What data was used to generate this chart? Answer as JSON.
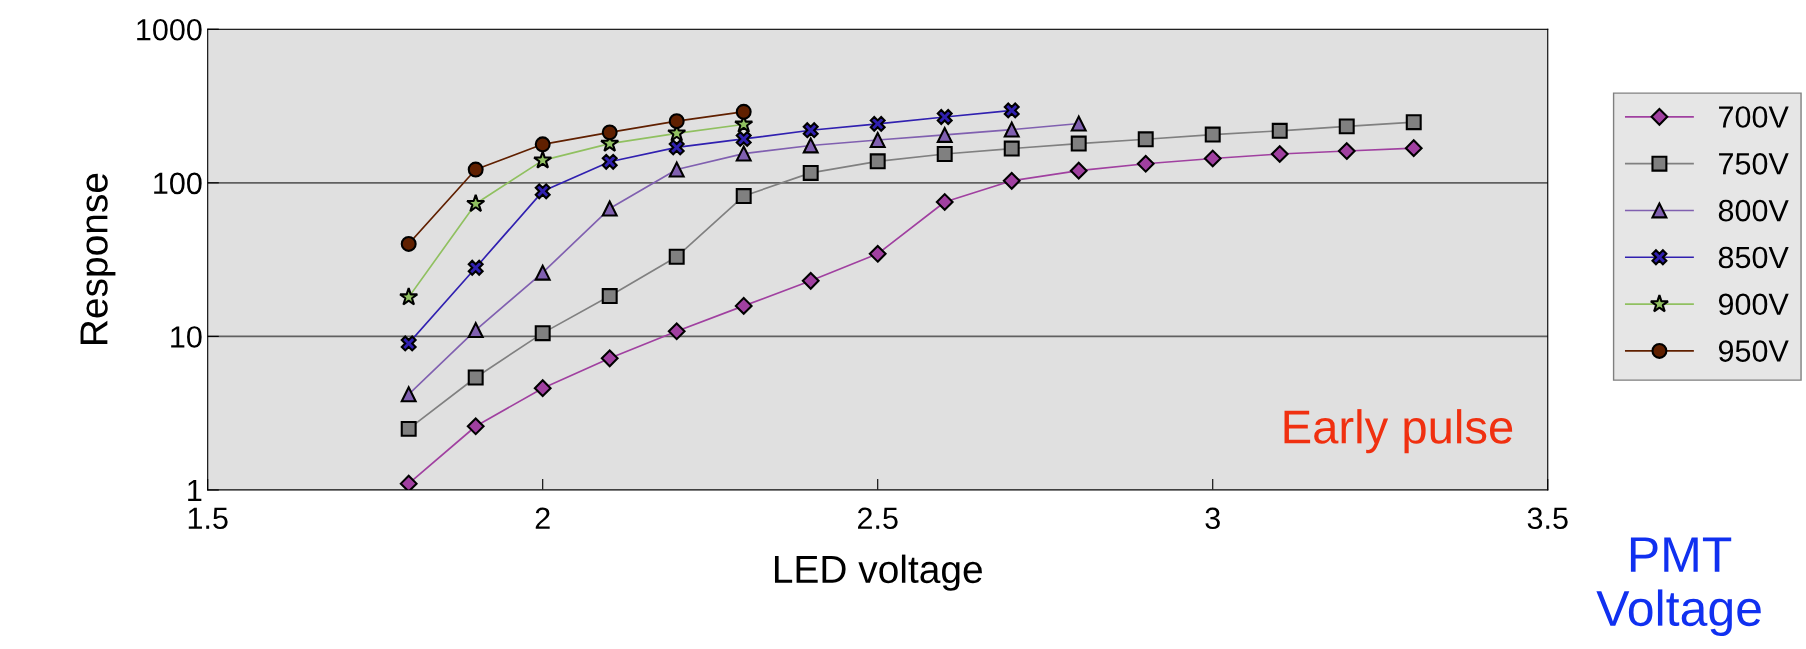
{
  "chart_data": {
    "type": "line",
    "xlabel": "LED voltage",
    "ylabel": "Response",
    "log": "y",
    "xlim": [
      1.5,
      3.5
    ],
    "xticks": [
      1.5,
      2,
      2.5,
      3,
      3.5
    ],
    "ylim": [
      1,
      1000
    ],
    "yticks": [
      1,
      10,
      100,
      1000
    ],
    "grid": "y",
    "legend": "right",
    "legend_title": "PMT Voltage",
    "annotations": [
      "Early pulse"
    ],
    "series": [
      {
        "name": "700V",
        "color": "#a040a0",
        "marker": "diamond",
        "x": [
          1.8,
          1.9,
          2.0,
          2.1,
          2.2,
          2.3,
          2.4,
          2.5,
          2.6,
          2.7,
          2.8,
          2.9,
          3.0,
          3.1,
          3.2,
          3.3
        ],
        "values": [
          1.1,
          2.6,
          4.6,
          7.2,
          10.8,
          15.8,
          23,
          34.5,
          75,
          103,
          120,
          133,
          144,
          154,
          161,
          168
        ]
      },
      {
        "name": "750V",
        "color": "#808080",
        "marker": "square",
        "x": [
          1.8,
          1.9,
          2.0,
          2.1,
          2.2,
          2.3,
          2.4,
          2.5,
          2.6,
          2.7,
          2.8,
          2.9,
          3.0,
          3.1,
          3.2,
          3.3
        ],
        "values": [
          2.5,
          5.4,
          10.5,
          18.3,
          33,
          82,
          116,
          138,
          154,
          167,
          180,
          192,
          206,
          218,
          233,
          248
        ]
      },
      {
        "name": "800V",
        "color": "#8060b0",
        "marker": "triangle",
        "x": [
          1.8,
          1.9,
          2.0,
          2.1,
          2.2,
          2.3,
          2.4,
          2.5,
          2.6,
          2.7,
          2.8
        ],
        "values": [
          4.2,
          11,
          26,
          68,
          122,
          155,
          175,
          190,
          205,
          222,
          243
        ]
      },
      {
        "name": "850V",
        "color": "#3020b0",
        "marker": "cross",
        "x": [
          1.8,
          1.9,
          2.0,
          2.1,
          2.2,
          2.3,
          2.4,
          2.5,
          2.6,
          2.7
        ],
        "values": [
          9,
          28,
          88,
          137,
          170,
          193,
          220,
          242,
          268,
          296
        ]
      },
      {
        "name": "900V",
        "color": "#90c060",
        "marker": "star",
        "x": [
          1.8,
          1.9,
          2.0,
          2.1,
          2.2,
          2.3
        ],
        "values": [
          18,
          73,
          140,
          180,
          210,
          240
        ]
      },
      {
        "name": "950V",
        "color": "#602000",
        "marker": "circle",
        "x": [
          1.8,
          1.9,
          2.0,
          2.1,
          2.2,
          2.3
        ],
        "values": [
          40,
          122,
          178,
          213,
          252,
          290
        ]
      }
    ]
  }
}
